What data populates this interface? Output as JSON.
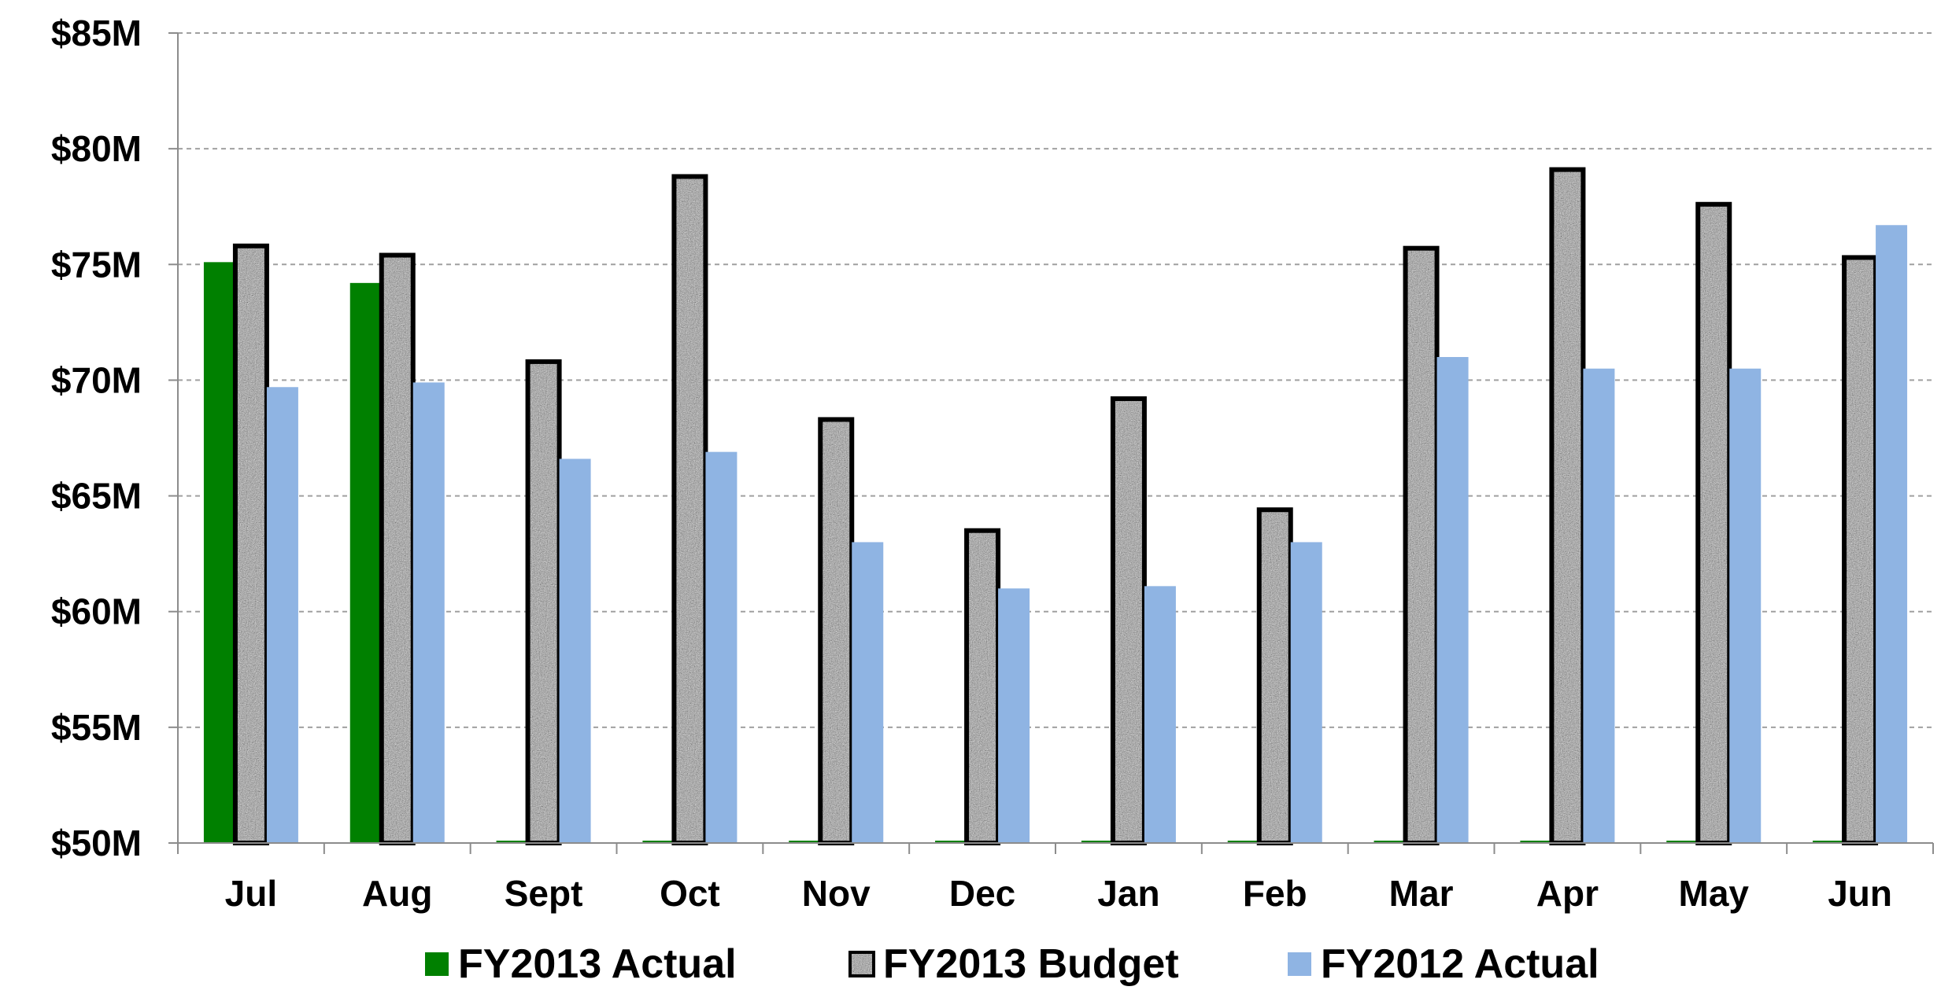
{
  "chart_data": {
    "type": "bar",
    "title": "",
    "xlabel": "",
    "ylabel": "",
    "categories": [
      "Jul",
      "Aug",
      "Sept",
      "Oct",
      "Nov",
      "Dec",
      "Jan",
      "Feb",
      "Mar",
      "Apr",
      "May",
      "Jun"
    ],
    "ylim": [
      50,
      85
    ],
    "yticks": [
      50,
      55,
      60,
      65,
      70,
      75,
      80,
      85
    ],
    "ytick_labels": [
      "$50M",
      "$55M",
      "$60M",
      "$65M",
      "$70M",
      "$75M",
      "$80M",
      "$85M"
    ],
    "grid": true,
    "legend_position": "bottom",
    "series": [
      {
        "name": "FY2013 Actual",
        "values": [
          75.1,
          74.2,
          50,
          50,
          50,
          50,
          50,
          50,
          50,
          50,
          50,
          50
        ]
      },
      {
        "name": "FY2013 Budget",
        "values": [
          75.8,
          75.4,
          70.8,
          78.8,
          68.3,
          63.5,
          69.2,
          64.4,
          75.7,
          79.1,
          77.6,
          75.3
        ]
      },
      {
        "name": "FY2012 Actual",
        "values": [
          69.7,
          69.9,
          66.6,
          66.9,
          63.0,
          61.0,
          61.1,
          63.0,
          71.0,
          70.5,
          70.5,
          76.7
        ]
      }
    ]
  },
  "colors": {
    "fy2013_actual": "#008000",
    "fy2013_budget_fill": "#9a9a9a",
    "fy2013_budget_border": "#000000",
    "fy2012_actual": "#8fb4e3",
    "gridline": "#a0a0a0",
    "axis": "#8c8c8c"
  }
}
